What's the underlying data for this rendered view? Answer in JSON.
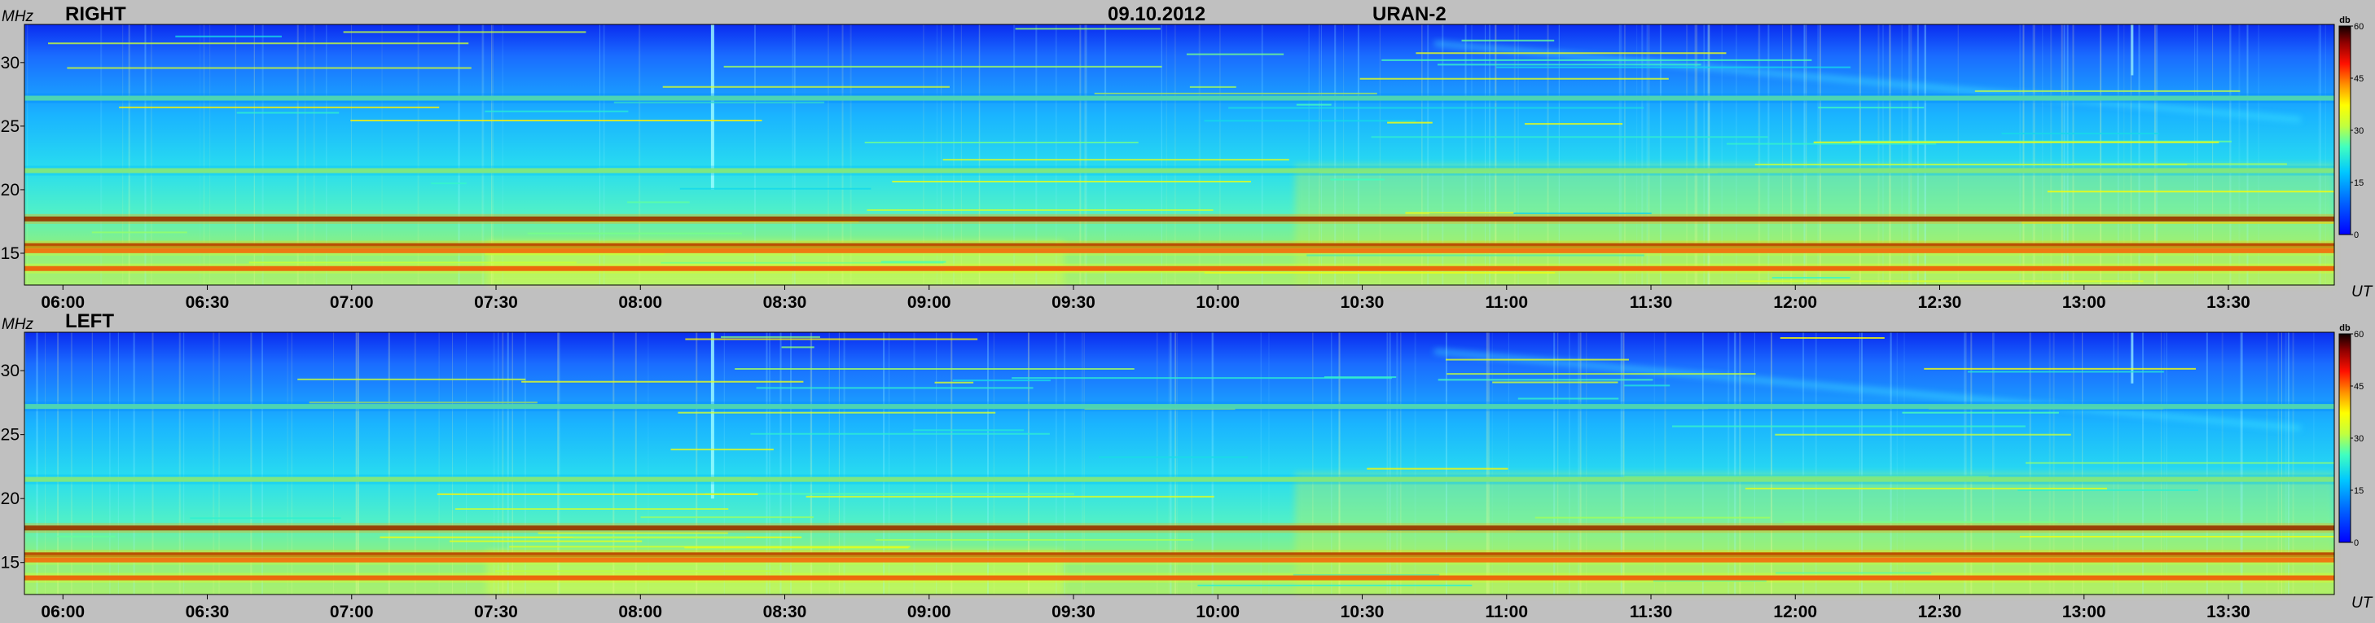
{
  "header": {
    "date": "09.10.2012",
    "instrument": "URAN-2"
  },
  "colors": {
    "background": "#c0c0c0",
    "colormap": [
      "#00008f",
      "#0000ff",
      "#0080ff",
      "#00ffff",
      "#80ff80",
      "#ffff00",
      "#ff8000",
      "#ff0000",
      "#800000",
      "#000000"
    ]
  },
  "chart_data": [
    {
      "type": "heatmap",
      "title": "RIGHT",
      "ylabel": "MHz",
      "xlabel": "UT",
      "ylim": [
        12.5,
        33
      ],
      "xlim": [
        "05:52",
        "13:52"
      ],
      "yticks": [
        "30",
        "25",
        "20",
        "15"
      ],
      "ytick_values": [
        30,
        25,
        20,
        15
      ],
      "xticks": [
        "06:00",
        "06:30",
        "07:00",
        "07:30",
        "08:00",
        "08:30",
        "09:00",
        "09:30",
        "10:00",
        "10:30",
        "11:00",
        "11:30",
        "12:00",
        "12:30",
        "13:00",
        "13:30"
      ],
      "colorbar": {
        "label": "db",
        "ticks": [
          "60",
          "45",
          "30",
          "15",
          "0"
        ],
        "tick_values": [
          60,
          45,
          30,
          15,
          0
        ],
        "range": [
          0,
          60
        ]
      },
      "bands": [
        {
          "freq_mhz": 17.7,
          "level_db": 57
        },
        {
          "freq_mhz": 15.6,
          "level_db": 55
        },
        {
          "freq_mhz": 15.2,
          "level_db": 48
        },
        {
          "freq_mhz": 13.8,
          "level_db": 50
        },
        {
          "freq_mhz": 21.5,
          "level_db": 32
        },
        {
          "freq_mhz": 27.2,
          "level_db": 28
        }
      ]
    },
    {
      "type": "heatmap",
      "title": "LEFT",
      "ylabel": "MHz",
      "xlabel": "UT",
      "ylim": [
        12.5,
        33
      ],
      "xlim": [
        "05:52",
        "13:52"
      ],
      "yticks": [
        "30",
        "25",
        "20",
        "15"
      ],
      "ytick_values": [
        30,
        25,
        20,
        15
      ],
      "xticks": [
        "06:00",
        "06:30",
        "07:00",
        "07:30",
        "08:00",
        "08:30",
        "09:00",
        "09:30",
        "10:00",
        "10:30",
        "11:00",
        "11:30",
        "12:00",
        "12:30",
        "13:00",
        "13:30"
      ],
      "colorbar": {
        "label": "db",
        "ticks": [
          "60",
          "45",
          "30",
          "15",
          "0"
        ],
        "tick_values": [
          60,
          45,
          30,
          15,
          0
        ],
        "range": [
          0,
          60
        ]
      },
      "bands": [
        {
          "freq_mhz": 17.7,
          "level_db": 57
        },
        {
          "freq_mhz": 15.6,
          "level_db": 55
        },
        {
          "freq_mhz": 15.2,
          "level_db": 48
        },
        {
          "freq_mhz": 13.8,
          "level_db": 50
        },
        {
          "freq_mhz": 21.5,
          "level_db": 32
        },
        {
          "freq_mhz": 27.2,
          "level_db": 28
        }
      ]
    }
  ]
}
